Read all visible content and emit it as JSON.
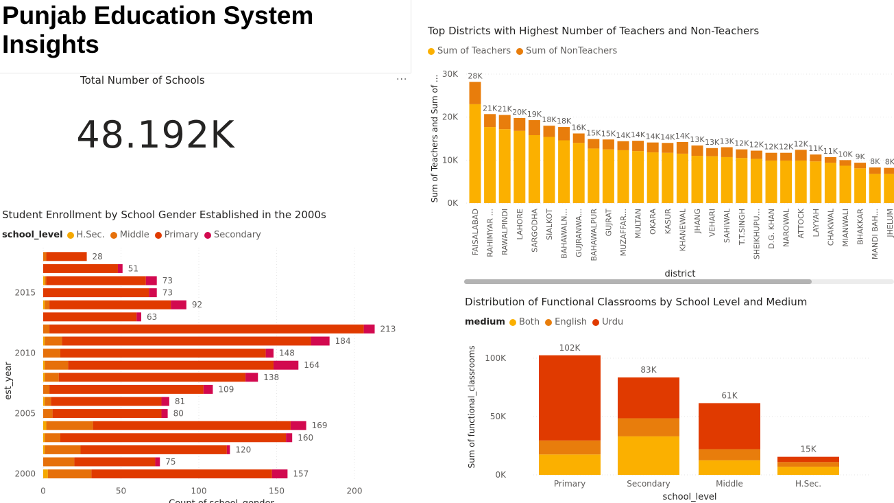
{
  "page": {
    "title": "Punjab Education System Insights"
  },
  "kpi": {
    "label": "Total Number of Schools",
    "value": "48.192K",
    "more_label": "···"
  },
  "colors": {
    "hsec": "#f5a800",
    "middle": "#e6700a",
    "primary": "#e03a00",
    "secondary": "#d2094f",
    "teachers": "#fbb000",
    "nonteachers": "#e87d0c",
    "both": "#fbb000",
    "english": "#e87d0c",
    "urdu": "#e03a00"
  },
  "teachers_chart": {
    "title": "Top Districts with Highest Number of Teachers and Non-Teachers",
    "legend": [
      "Sum of Teachers",
      "Sum of NonTeachers"
    ],
    "xlabel": "district",
    "ylabel": "Sum of Teachers and Sum of ..."
  },
  "enrollment_chart": {
    "title": "Student Enrollment by School Gender Established in the 2000s",
    "legend_title": "school_level",
    "legend": [
      "H.Sec.",
      "Middle",
      "Primary",
      "Secondary"
    ],
    "xlabel": "Count of school_gender",
    "ylabel": "est_year"
  },
  "classrooms_chart": {
    "title": "Distribution of Functional Classrooms by School Level and Medium",
    "legend_title": "medium",
    "legend": [
      "Both",
      "English",
      "Urdu"
    ],
    "xlabel": "school_level",
    "ylabel": "Sum of functional_classrooms"
  },
  "chart_data": [
    {
      "id": "teachers",
      "type": "bar",
      "stacked": true,
      "title": "Top Districts with Highest Number of Teachers and Non-Teachers",
      "xlabel": "district",
      "ylabel": "Sum of Teachers and Sum of ...",
      "ylim": [
        0,
        30000
      ],
      "yticks": [
        {
          "value": 0,
          "label": "0K"
        },
        {
          "value": 10000,
          "label": "10K"
        },
        {
          "value": 20000,
          "label": "20K"
        },
        {
          "value": 30000,
          "label": "30K"
        }
      ],
      "categories": [
        "FAISALABAD",
        "RAHIMYAR ...",
        "RAWALPINDI",
        "LAHORE",
        "SARGODHA",
        "SIALKOT",
        "BAHAWALN...",
        "GUJRANWA...",
        "BAHAWALPUR",
        "GUJRAT",
        "MUZAFFAR...",
        "MULTAN",
        "OKARA",
        "KASUR",
        "KHANEWAL",
        "JHANG",
        "VEHARI",
        "SAHIWAL",
        "T.T.SINGH",
        "SHEIKHUPU...",
        "D.G. KHAN",
        "NAROWAL",
        "ATTOCK",
        "LAYYAH",
        "CHAKWAL",
        "MIANWALI",
        "BHAKKAR",
        "MANDI BAH...",
        "JHELUM"
      ],
      "totals_labels": [
        "28K",
        "21K",
        "21K",
        "20K",
        "19K",
        "18K",
        "18K",
        "16K",
        "15K",
        "15K",
        "14K",
        "14K",
        "14K",
        "14K",
        "14K",
        "13K",
        "13K",
        "13K",
        "12K",
        "12K",
        "12K",
        "12K",
        "12K",
        "11K",
        "11K",
        "10K",
        "9K",
        "8K",
        "8K"
      ],
      "series": [
        {
          "name": "Sum of Teachers",
          "values": [
            23000,
            17700,
            17200,
            16800,
            15800,
            15400,
            14600,
            14000,
            12700,
            12500,
            12300,
            12100,
            11800,
            11700,
            11500,
            11000,
            10900,
            10700,
            10500,
            10300,
            9900,
            9900,
            9900,
            9700,
            9400,
            8700,
            8100,
            6800,
            6800
          ]
        },
        {
          "name": "Sum of NonTeachers",
          "values": [
            5200,
            3000,
            3300,
            3000,
            3500,
            2600,
            3100,
            2200,
            2200,
            2300,
            2100,
            2400,
            2300,
            2300,
            2700,
            2400,
            1900,
            2300,
            2000,
            1900,
            1800,
            1800,
            2500,
            1600,
            1300,
            1300,
            1300,
            1500,
            1400
          ]
        }
      ]
    },
    {
      "id": "enrollment",
      "type": "bar",
      "orientation": "horizontal",
      "stacked": true,
      "title": "Student Enrollment by School Gender Established in the 2000s",
      "xlabel": "Count of school_gender",
      "ylabel": "est_year",
      "xlim": [
        0,
        220
      ],
      "xticks": [
        0,
        50,
        100,
        150,
        200
      ],
      "ytick_labels": [
        {
          "year": 2015,
          "label": "2015"
        },
        {
          "year": 2010,
          "label": "2010"
        },
        {
          "year": 2005,
          "label": "2005"
        },
        {
          "year": 2000,
          "label": "2000"
        }
      ],
      "categories": [
        2018,
        2017,
        2016,
        2015,
        2014,
        2013,
        2012,
        2011,
        2010,
        2009,
        2008,
        2007,
        2006,
        2005,
        2004,
        2003,
        2002,
        2001,
        2000
      ],
      "total_labels": [
        "28",
        "51",
        "73",
        "73",
        "92",
        "63",
        "213",
        "184",
        "148",
        "164",
        "138",
        "109",
        "81",
        "80",
        "169",
        "160",
        "120",
        "75",
        "157"
      ],
      "series": [
        {
          "name": "H.Sec.",
          "values": [
            0,
            0,
            1,
            0,
            1,
            0,
            0,
            1,
            0,
            1,
            1,
            0,
            1,
            0,
            2,
            1,
            1,
            0,
            3
          ]
        },
        {
          "name": "Middle",
          "values": [
            2,
            0,
            1,
            0,
            3,
            0,
            4,
            11,
            11,
            15,
            9,
            4,
            4,
            6,
            30,
            10,
            23,
            20,
            28
          ]
        },
        {
          "name": "Primary",
          "values": [
            26,
            48,
            64,
            68,
            78,
            60,
            202,
            160,
            132,
            132,
            120,
            99,
            71,
            70,
            127,
            145,
            94,
            52,
            116
          ]
        },
        {
          "name": "Secondary",
          "values": [
            0,
            3,
            7,
            5,
            10,
            3,
            7,
            12,
            5,
            16,
            8,
            6,
            5,
            4,
            10,
            4,
            2,
            3,
            10
          ]
        }
      ]
    },
    {
      "id": "classrooms",
      "type": "bar",
      "stacked": true,
      "title": "Distribution of Functional Classrooms by School Level and Medium",
      "xlabel": "school_level",
      "ylabel": "Sum of functional_classrooms",
      "ylim": [
        0,
        110000
      ],
      "yticks": [
        {
          "value": 0,
          "label": "0K"
        },
        {
          "value": 50000,
          "label": "50K"
        },
        {
          "value": 100000,
          "label": "100K"
        }
      ],
      "categories": [
        "Primary",
        "Secondary",
        "Middle",
        "H.Sec."
      ],
      "totals_labels": [
        "102K",
        "83K",
        "61K",
        "15K"
      ],
      "series": [
        {
          "name": "Both",
          "values": [
            17500,
            33000,
            12500,
            7000
          ]
        },
        {
          "name": "English",
          "values": [
            12000,
            15500,
            9500,
            4000
          ]
        },
        {
          "name": "Urdu",
          "values": [
            73000,
            35000,
            39500,
            4500
          ]
        }
      ]
    }
  ]
}
